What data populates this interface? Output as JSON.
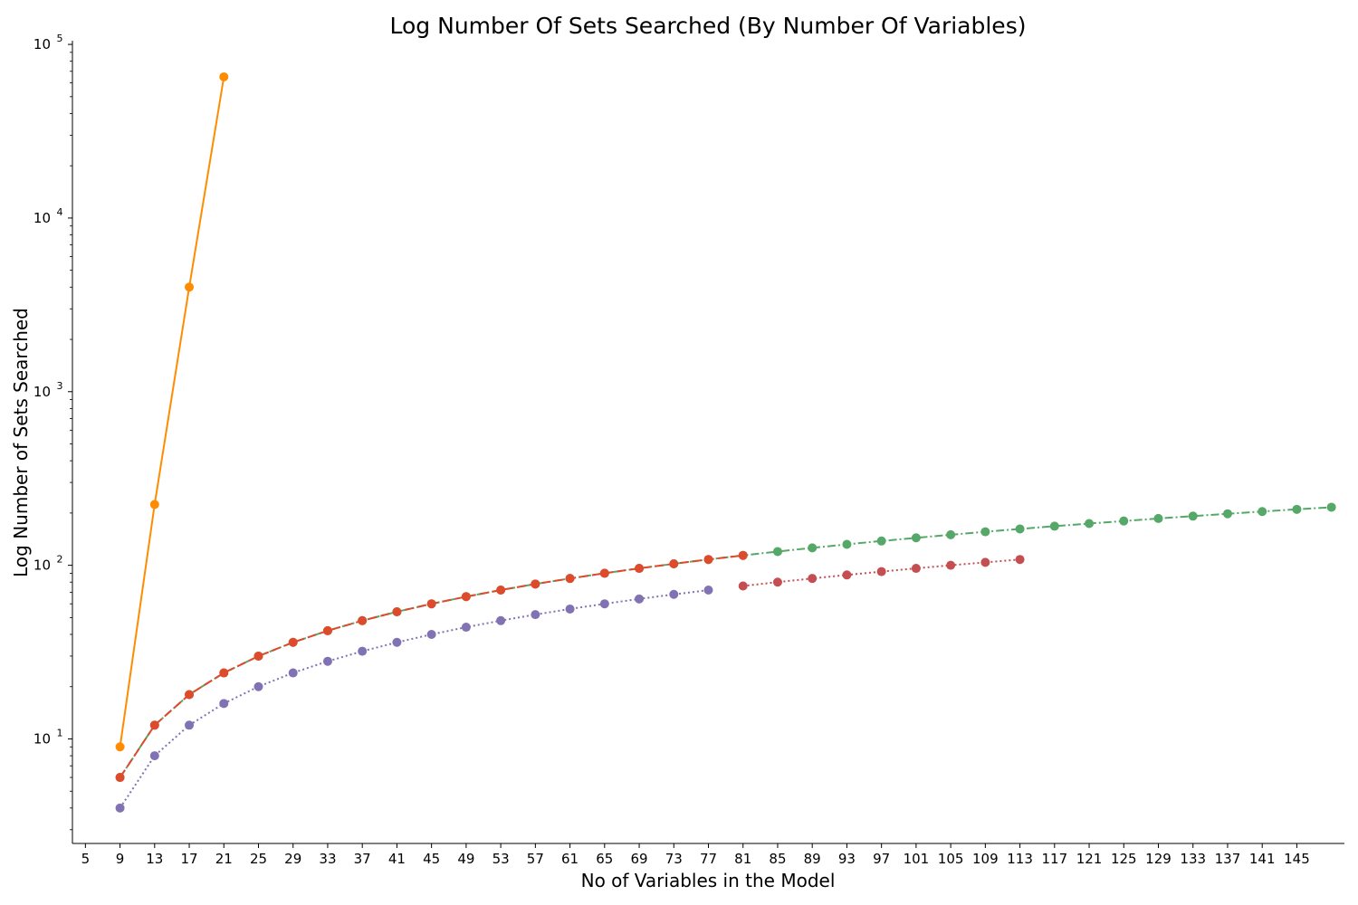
{
  "chart_data": {
    "type": "line",
    "title": "Log Number Of Sets Searched (By Number Of Variables)",
    "xlabel": "No of Variables in the Model",
    "ylabel": "Log Number of Sets Searched",
    "yscale": "log",
    "xlim": [
      3.5,
      150.5
    ],
    "ylim": [
      2.5,
      105000
    ],
    "xticks": [
      5,
      9,
      13,
      17,
      21,
      25,
      29,
      33,
      37,
      41,
      45,
      49,
      53,
      57,
      61,
      65,
      69,
      73,
      77,
      81,
      85,
      89,
      93,
      97,
      101,
      105,
      109,
      113,
      117,
      121,
      125,
      129,
      133,
      137,
      141,
      145
    ],
    "yticks": [
      {
        "value": 10,
        "base": "10",
        "exp": "1"
      },
      {
        "value": 100,
        "base": "10",
        "exp": "2"
      },
      {
        "value": 1000,
        "base": "10",
        "exp": "3"
      },
      {
        "value": 10000,
        "base": "10",
        "exp": "4"
      },
      {
        "value": 100000,
        "base": "10",
        "exp": "5"
      }
    ],
    "grid": false,
    "legend": "none",
    "series": [
      {
        "color": "#ff8c00",
        "dash": "solid",
        "x": [
          9,
          13,
          17,
          21
        ],
        "y": [
          9,
          224,
          4000,
          65000
        ]
      },
      {
        "color": "#55a868",
        "dash": "dashdot",
        "x": [
          9,
          13,
          17,
          21,
          25,
          29,
          33,
          37,
          41,
          45,
          49,
          53,
          57,
          61,
          65,
          69,
          73,
          77,
          81,
          85,
          89,
          93,
          97,
          101,
          105,
          109,
          113,
          117,
          121,
          125,
          129,
          133,
          137,
          141,
          145,
          149
        ],
        "y": [
          6,
          12,
          18,
          24,
          30,
          36,
          42,
          48,
          54,
          60,
          66,
          72,
          78,
          84,
          90,
          96,
          102,
          108,
          114,
          120,
          126,
          132,
          138,
          144,
          150,
          156,
          162,
          168,
          174,
          180,
          186,
          192,
          198,
          204,
          210,
          216
        ]
      },
      {
        "color": "#dd4a2c",
        "dash": "dashed",
        "x": [
          9,
          13,
          17,
          21,
          25,
          29,
          33,
          37,
          41,
          45,
          49,
          53,
          57,
          61,
          65,
          69,
          73,
          77,
          81
        ],
        "y": [
          6,
          12,
          18,
          24,
          30,
          36,
          42,
          48,
          54,
          60,
          66,
          72,
          78,
          84,
          90,
          96,
          102,
          108,
          114
        ]
      },
      {
        "color": "#c44e52",
        "dash": "dotted",
        "x": [
          81,
          85,
          89,
          93,
          97,
          101,
          105,
          109,
          113
        ],
        "y": [
          76,
          80,
          84,
          88,
          92,
          96,
          100,
          104,
          108
        ]
      },
      {
        "color": "#8172b3",
        "dash": "dotted",
        "x": [
          9,
          13,
          17,
          21,
          25,
          29,
          33,
          37,
          41,
          45,
          49,
          53,
          57,
          61,
          65,
          69,
          73,
          77
        ],
        "y": [
          4,
          8,
          12,
          16,
          20,
          24,
          28,
          32,
          36,
          40,
          44,
          48,
          52,
          56,
          60,
          64,
          68,
          72
        ]
      }
    ]
  }
}
